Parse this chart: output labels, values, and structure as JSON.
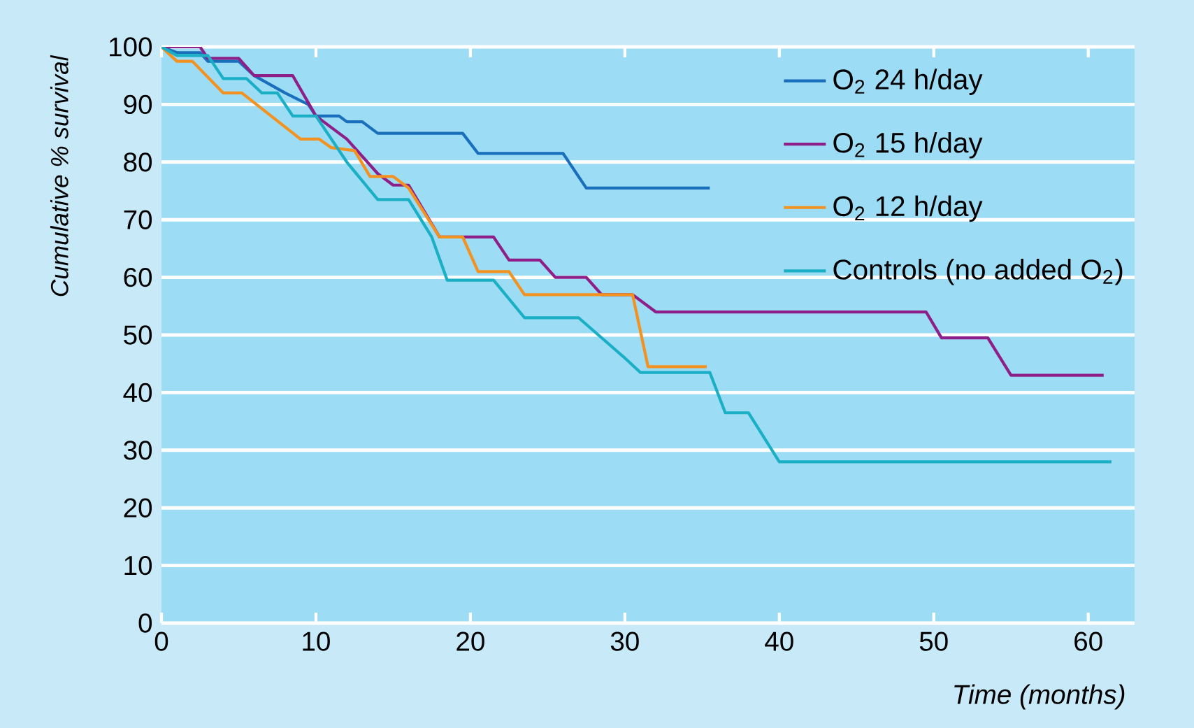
{
  "chart_data": {
    "type": "line",
    "xlabel": "Time (months)",
    "ylabel": "Cumulative % survival",
    "xlim": [
      0,
      63
    ],
    "ylim": [
      0,
      100
    ],
    "xticks": [
      0,
      10,
      20,
      30,
      40,
      50,
      60
    ],
    "yticks": [
      0,
      10,
      20,
      30,
      40,
      50,
      60,
      70,
      80,
      90,
      100
    ],
    "grid": "y",
    "legend": "top right",
    "series": [
      {
        "name": "O$_{2}$ 24 h/day",
        "color": "#1a6fbd",
        "x": [
          0,
          1,
          2.5,
          3,
          5,
          6,
          8,
          9.5,
          10,
          11.5,
          12,
          13,
          14,
          19.5,
          20.5,
          26,
          27.5,
          35.5
        ],
        "values": [
          100,
          99,
          99,
          97.5,
          97.5,
          95,
          92,
          90,
          88,
          88,
          87,
          87,
          85,
          85,
          81.5,
          81.5,
          75.5,
          75.5
        ]
      },
      {
        "name": "O$_{2}$ 15 h/day",
        "color": "#8e1f88",
        "x": [
          0,
          2.5,
          3,
          5,
          6,
          8.5,
          10,
          12,
          14,
          15,
          16,
          18,
          21.5,
          22.5,
          24.5,
          25.5,
          27.5,
          28.5,
          30.5,
          32,
          49.5,
          50.5,
          53.5,
          55,
          61
        ],
        "values": [
          100,
          100,
          98,
          98,
          95,
          95,
          88,
          84,
          78,
          76,
          76,
          67,
          67,
          63,
          63,
          60,
          60,
          57,
          57,
          54,
          54,
          49.5,
          49.5,
          43,
          43
        ]
      },
      {
        "name": "O$_{2}$ 12 h/day",
        "color": "#f39220",
        "x": [
          0,
          1,
          2,
          4,
          5.2,
          9,
          10.2,
          11,
          12.5,
          13.5,
          15,
          16,
          18,
          19.5,
          20.5,
          22.5,
          23.5,
          30.5,
          31.5,
          35.3
        ],
        "values": [
          100,
          97.5,
          97.5,
          92,
          92,
          84,
          84,
          82.5,
          82,
          77.5,
          77.5,
          75.5,
          67,
          67,
          61,
          61,
          57,
          57,
          44.5,
          44.5
        ]
      },
      {
        "name": "Controls (no added O$_{2}$)",
        "color": "#1aafc4",
        "x": [
          0,
          1,
          3,
          4,
          5.5,
          6.5,
          7.5,
          8.5,
          10,
          11,
          12,
          14,
          16,
          17.5,
          18.5,
          21.5,
          23.5,
          27,
          30,
          31,
          35.5,
          36.5,
          38,
          40,
          61.5
        ],
        "values": [
          100,
          98.5,
          98.5,
          94.5,
          94.5,
          92,
          92,
          88,
          88,
          84,
          80,
          73.5,
          73.5,
          67,
          59.5,
          59.5,
          53,
          53,
          46,
          43.5,
          43.5,
          36.5,
          36.5,
          28,
          28
        ]
      }
    ]
  }
}
